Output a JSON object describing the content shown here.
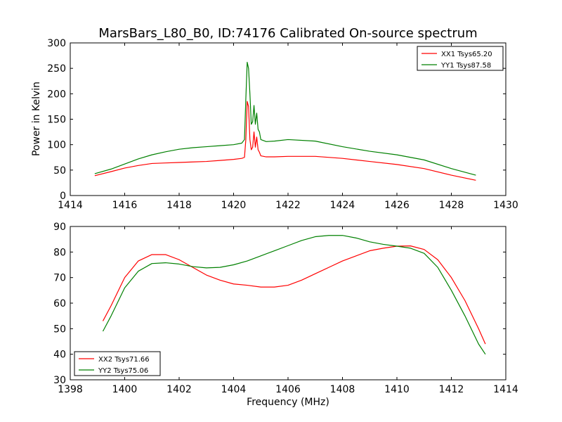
{
  "figure": {
    "title": "MarsBars_L80_B0, ID:74176 Calibrated On-source spectrum",
    "ylabel": "Power in Kelvin",
    "xlabel": "Frequency (MHz)"
  },
  "chart_data": [
    {
      "type": "line",
      "title": "MarsBars_L80_B0, ID:74176 Calibrated On-source spectrum",
      "xlabel": "",
      "ylabel": "Power in Kelvin",
      "xlim": [
        1414,
        1430
      ],
      "ylim": [
        0,
        300
      ],
      "xticks": [
        1414,
        1416,
        1418,
        1420,
        1422,
        1424,
        1426,
        1428,
        1430
      ],
      "yticks": [
        0,
        50,
        100,
        150,
        200,
        250,
        300
      ],
      "grid": false,
      "legend_position": "top-right",
      "series": [
        {
          "name": "XX1 Tsys65.20",
          "color": "#ff0000",
          "points": [
            [
              1414.9,
              39
            ],
            [
              1415.5,
              47
            ],
            [
              1416,
              54
            ],
            [
              1416.5,
              59
            ],
            [
              1417,
              63
            ],
            [
              1417.5,
              64
            ],
            [
              1418,
              65
            ],
            [
              1418.5,
              66
            ],
            [
              1419,
              67
            ],
            [
              1419.5,
              69
            ],
            [
              1420,
              71
            ],
            [
              1420.3,
              73
            ],
            [
              1420.4,
              75
            ],
            [
              1420.45,
              110
            ],
            [
              1420.5,
              185
            ],
            [
              1420.55,
              175
            ],
            [
              1420.6,
              110
            ],
            [
              1420.65,
              90
            ],
            [
              1420.7,
              95
            ],
            [
              1420.75,
              125
            ],
            [
              1420.8,
              95
            ],
            [
              1420.85,
              115
            ],
            [
              1420.9,
              90
            ],
            [
              1420.95,
              85
            ],
            [
              1421,
              78
            ],
            [
              1421.2,
              76
            ],
            [
              1421.5,
              76
            ],
            [
              1422,
              77
            ],
            [
              1423,
              77
            ],
            [
              1424,
              73
            ],
            [
              1425,
              67
            ],
            [
              1426,
              61
            ],
            [
              1427,
              53
            ],
            [
              1428,
              40
            ],
            [
              1428.9,
              30
            ]
          ]
        },
        {
          "name": "YY1 Tsys87.58",
          "color": "#008000",
          "points": [
            [
              1414.9,
              43
            ],
            [
              1415.5,
              52
            ],
            [
              1416,
              62
            ],
            [
              1416.5,
              72
            ],
            [
              1417,
              80
            ],
            [
              1417.5,
              86
            ],
            [
              1418,
              91
            ],
            [
              1418.5,
              94
            ],
            [
              1419,
              96
            ],
            [
              1419.5,
              98
            ],
            [
              1420,
              100
            ],
            [
              1420.3,
              103
            ],
            [
              1420.4,
              110
            ],
            [
              1420.45,
              190
            ],
            [
              1420.5,
              262
            ],
            [
              1420.55,
              250
            ],
            [
              1420.6,
              200
            ],
            [
              1420.65,
              140
            ],
            [
              1420.7,
              145
            ],
            [
              1420.75,
              177
            ],
            [
              1420.8,
              140
            ],
            [
              1420.85,
              162
            ],
            [
              1420.9,
              130
            ],
            [
              1420.95,
              125
            ],
            [
              1421,
              110
            ],
            [
              1421.2,
              106
            ],
            [
              1421.5,
              107
            ],
            [
              1422,
              110
            ],
            [
              1423,
              107
            ],
            [
              1424,
              96
            ],
            [
              1425,
              87
            ],
            [
              1426,
              80
            ],
            [
              1427,
              70
            ],
            [
              1428,
              53
            ],
            [
              1428.9,
              40
            ]
          ]
        }
      ]
    },
    {
      "type": "line",
      "xlabel": "Frequency (MHz)",
      "ylabel": "",
      "xlim": [
        1398,
        1414
      ],
      "ylim": [
        30,
        90
      ],
      "xticks": [
        1398,
        1400,
        1402,
        1404,
        1406,
        1408,
        1410,
        1412,
        1414
      ],
      "yticks": [
        30,
        40,
        50,
        60,
        70,
        80,
        90
      ],
      "grid": false,
      "legend_position": "bottom-left",
      "series": [
        {
          "name": "XX2 Tsys71.66",
          "color": "#ff0000",
          "points": [
            [
              1399.2,
              53
            ],
            [
              1399.5,
              59
            ],
            [
              1400,
              70
            ],
            [
              1400.5,
              76.5
            ],
            [
              1401,
              79
            ],
            [
              1401.5,
              79
            ],
            [
              1402,
              77
            ],
            [
              1402.5,
              74
            ],
            [
              1403,
              71
            ],
            [
              1403.5,
              69
            ],
            [
              1404,
              67.5
            ],
            [
              1404.5,
              67
            ],
            [
              1405,
              66.3
            ],
            [
              1405.5,
              66.3
            ],
            [
              1406,
              67
            ],
            [
              1406.5,
              69
            ],
            [
              1407,
              71.5
            ],
            [
              1407.5,
              74
            ],
            [
              1408,
              76.5
            ],
            [
              1408.5,
              78.5
            ],
            [
              1409,
              80.5
            ],
            [
              1409.5,
              81.5
            ],
            [
              1410,
              82.3
            ],
            [
              1410.5,
              82.4
            ],
            [
              1411,
              81
            ],
            [
              1411.5,
              77
            ],
            [
              1412,
              70
            ],
            [
              1412.5,
              61
            ],
            [
              1413,
              50
            ],
            [
              1413.25,
              44
            ]
          ]
        },
        {
          "name": "YY2 Tsys75.06",
          "color": "#008000",
          "points": [
            [
              1399.2,
              49
            ],
            [
              1399.5,
              55
            ],
            [
              1400,
              66
            ],
            [
              1400.5,
              72.5
            ],
            [
              1401,
              75.5
            ],
            [
              1401.5,
              75.8
            ],
            [
              1402,
              75.3
            ],
            [
              1402.5,
              74.3
            ],
            [
              1403,
              73.8
            ],
            [
              1403.5,
              74
            ],
            [
              1404,
              75
            ],
            [
              1404.5,
              76.5
            ],
            [
              1405,
              78.5
            ],
            [
              1405.5,
              80.5
            ],
            [
              1406,
              82.5
            ],
            [
              1406.5,
              84.5
            ],
            [
              1407,
              86
            ],
            [
              1407.5,
              86.5
            ],
            [
              1408,
              86.5
            ],
            [
              1408.5,
              85.5
            ],
            [
              1409,
              84
            ],
            [
              1409.5,
              83
            ],
            [
              1410,
              82.3
            ],
            [
              1410.5,
              81.5
            ],
            [
              1411,
              79.5
            ],
            [
              1411.5,
              74
            ],
            [
              1412,
              65
            ],
            [
              1412.5,
              55
            ],
            [
              1413,
              44
            ],
            [
              1413.25,
              40
            ]
          ]
        }
      ]
    }
  ]
}
